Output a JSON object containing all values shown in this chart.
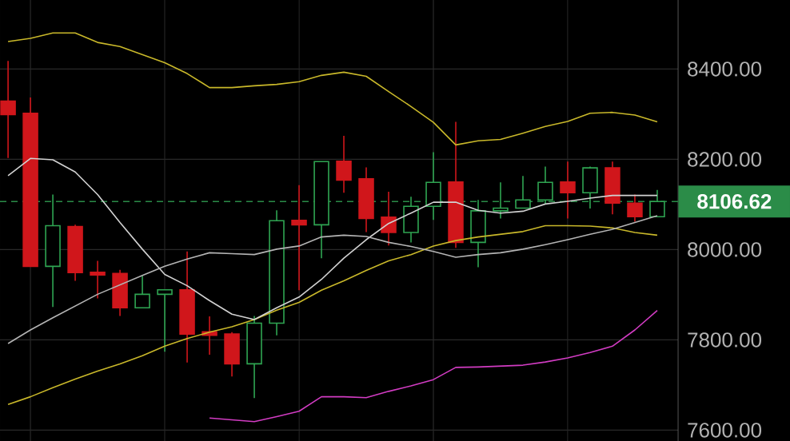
{
  "chart_data": {
    "type": "candlestick",
    "categories": [
      null,
      null,
      null,
      null,
      null,
      null,
      null,
      null,
      null,
      null,
      null,
      null,
      null,
      null,
      null,
      null,
      null,
      null,
      null,
      null,
      null,
      null,
      null,
      null,
      null,
      null,
      null,
      null,
      null,
      null
    ],
    "ohlc": [
      [
        8329,
        8418,
        8203,
        8299
      ],
      [
        8302,
        8337,
        7963,
        7963
      ],
      [
        7963,
        8122,
        7873,
        8053
      ],
      [
        8051,
        8055,
        7931,
        7949
      ],
      [
        7950,
        7975,
        7892,
        7944
      ],
      [
        7947,
        7955,
        7853,
        7871
      ],
      [
        7871,
        7942,
        7871,
        7901
      ],
      [
        7901,
        7911,
        7774,
        7911
      ],
      [
        7911,
        7996,
        7750,
        7813
      ],
      [
        7818,
        7852,
        7767,
        7810
      ],
      [
        7813,
        7817,
        7719,
        7747
      ],
      [
        7747,
        7853,
        7671,
        7837
      ],
      [
        7837,
        8087,
        7810,
        8064
      ],
      [
        8065,
        8143,
        7910,
        8055
      ],
      [
        8055,
        8195,
        7981,
        8195
      ],
      [
        8196,
        8252,
        8126,
        8154
      ],
      [
        8157,
        8182,
        8039,
        8069
      ],
      [
        8072,
        8128,
        8009,
        8038
      ],
      [
        8038,
        8117,
        8016,
        8096
      ],
      [
        8096,
        8216,
        8066,
        8149
      ],
      [
        8150,
        8283,
        8004,
        8016
      ],
      [
        8016,
        8110,
        7961,
        8086
      ],
      [
        8086,
        8149,
        8069,
        8092
      ],
      [
        8092,
        8163,
        8092,
        8110
      ],
      [
        8110,
        8184,
        8101,
        8149
      ],
      [
        8150,
        8195,
        8069,
        8126
      ],
      [
        8126,
        8184,
        8091,
        8181
      ],
      [
        8181,
        8195,
        8078,
        8103
      ],
      [
        8103,
        8122,
        8062,
        8073
      ],
      [
        8073,
        8132,
        8073,
        8106.62
      ]
    ],
    "series": [
      {
        "type": "line",
        "color": "#c9b82a",
        "values": [
          8461,
          8468,
          8480,
          8480,
          8459,
          8450,
          8432,
          8414,
          8390,
          8359,
          8359,
          8363,
          8366,
          8372,
          8386,
          8393,
          8384,
          8350,
          8317,
          8282,
          8232,
          8241,
          8244,
          8258,
          8273,
          8284,
          8302,
          8304,
          8298,
          8283
        ]
      },
      {
        "type": "line",
        "color": "#c9b82a",
        "values": [
          7657,
          7674,
          7694,
          7713,
          7731,
          7747,
          7765,
          7786,
          7803,
          7817,
          7829,
          7845,
          7866,
          7883,
          7910,
          7931,
          7954,
          7975,
          7989,
          8008,
          8020,
          8028,
          8034,
          8040,
          8053,
          8053,
          8052,
          8048,
          8038,
          8032
        ]
      },
      {
        "type": "line",
        "color": "#d2d2d2",
        "values": [
          8164,
          8202,
          8199,
          8172,
          8122,
          8060,
          8001,
          7945,
          7920,
          7887,
          7857,
          7845,
          7871,
          7895,
          7934,
          7981,
          8022,
          8058,
          8081,
          8105,
          8105,
          8087,
          8081,
          8085,
          8101,
          8107,
          8114,
          8120,
          8120,
          8120
        ]
      },
      {
        "type": "line",
        "color": "#b4b4b4",
        "values": [
          7792,
          7822,
          7849,
          7875,
          7901,
          7922,
          7943,
          7963,
          7979,
          7993,
          7991,
          7989,
          8001,
          8008,
          8028,
          8032,
          8029,
          8016,
          8007,
          7996,
          7983,
          7989,
          7993,
          8001,
          8011,
          8022,
          8034,
          8045,
          8060,
          8075
        ]
      },
      {
        "type": "line",
        "color": "#d23cc3",
        "values": [
          null,
          null,
          null,
          null,
          null,
          null,
          null,
          null,
          null,
          7627,
          7623,
          7619,
          7630,
          7642,
          7674,
          7674,
          7672,
          7686,
          7698,
          7712,
          7739,
          7740,
          7742,
          7744,
          7751,
          7760,
          7772,
          7786,
          7822,
          7865
        ]
      }
    ],
    "ylim": [
      7576,
      8553
    ],
    "yticks": [
      {
        "value": 7600,
        "label": "7600.00"
      },
      {
        "value": 7800,
        "label": "7800.00"
      },
      {
        "value": 8000,
        "label": "8000.00"
      },
      {
        "value": 8200,
        "label": "8200.00"
      },
      {
        "value": 8400,
        "label": "8400.00"
      }
    ],
    "tick_labels": "y",
    "grid": true,
    "ref_lines": [
      {
        "axis": "y",
        "value": 8106.62,
        "label": "8106.62",
        "color": "#2b8c48",
        "line_style": "dashed"
      }
    ]
  }
}
